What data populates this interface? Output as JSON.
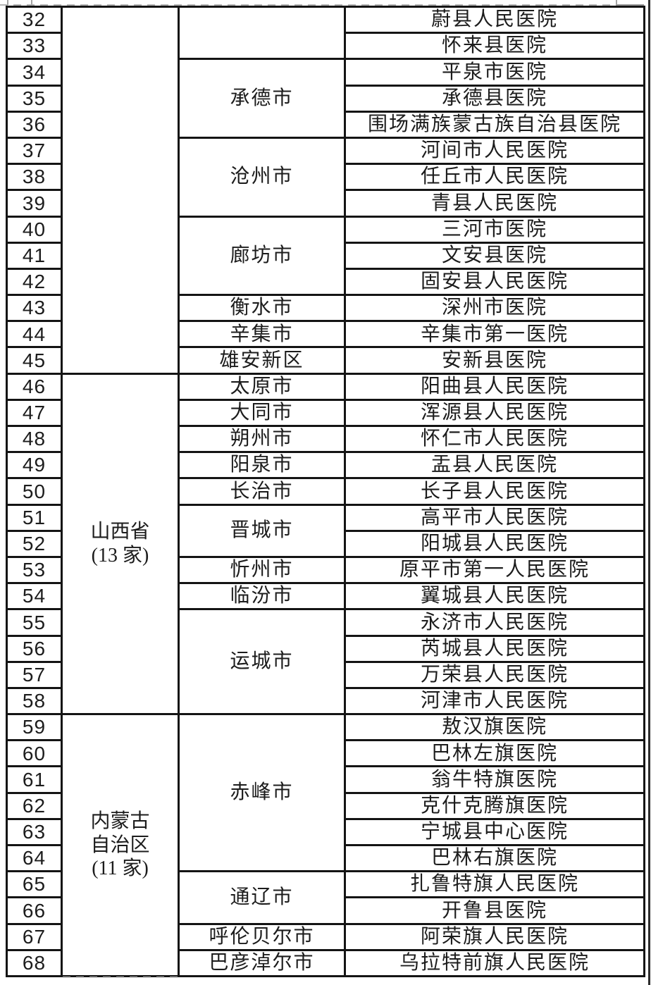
{
  "page": {
    "background_color": "#ffffff",
    "table_border_color": "#141414",
    "text_color": "#1c1c1c",
    "cut_line_color": "#b5b5b5"
  },
  "table": {
    "rows": [
      {
        "num": "32",
        "hospital": "蔚县人民医院"
      },
      {
        "num": "33",
        "hospital": "怀来县医院"
      },
      {
        "num": "34",
        "hospital": "平泉市医院"
      },
      {
        "num": "35",
        "hospital": "承德县医院"
      },
      {
        "num": "36",
        "hospital": "围场满族蒙古族自治县医院"
      },
      {
        "num": "37",
        "hospital": "河间市人民医院"
      },
      {
        "num": "38",
        "hospital": "任丘市人民医院"
      },
      {
        "num": "39",
        "hospital": "青县人民医院"
      },
      {
        "num": "40",
        "hospital": "三河市医院"
      },
      {
        "num": "41",
        "hospital": "文安县医院"
      },
      {
        "num": "42",
        "hospital": "固安县人民医院"
      },
      {
        "num": "43",
        "hospital": "深州市医院"
      },
      {
        "num": "44",
        "hospital": "辛集市第一医院"
      },
      {
        "num": "45",
        "hospital": "安新县医院"
      },
      {
        "num": "46",
        "hospital": "阳曲县人民医院"
      },
      {
        "num": "47",
        "hospital": "浑源县人民医院"
      },
      {
        "num": "48",
        "hospital": "怀仁市人民医院"
      },
      {
        "num": "49",
        "hospital": "盂县人民医院"
      },
      {
        "num": "50",
        "hospital": "长子县人民医院"
      },
      {
        "num": "51",
        "hospital": "高平市人民医院"
      },
      {
        "num": "52",
        "hospital": "阳城县人民医院"
      },
      {
        "num": "53",
        "hospital": "原平市第一人民医院"
      },
      {
        "num": "54",
        "hospital": "翼城县人民医院"
      },
      {
        "num": "55",
        "hospital": "永济市人民医院"
      },
      {
        "num": "56",
        "hospital": "芮城县人民医院"
      },
      {
        "num": "57",
        "hospital": "万荣县人民医院"
      },
      {
        "num": "58",
        "hospital": "河津市人民医院"
      },
      {
        "num": "59",
        "hospital": "敖汉旗医院"
      },
      {
        "num": "60",
        "hospital": "巴林左旗医院"
      },
      {
        "num": "61",
        "hospital": "翁牛特旗医院"
      },
      {
        "num": "62",
        "hospital": "克什克腾旗医院"
      },
      {
        "num": "63",
        "hospital": "宁城县中心医院"
      },
      {
        "num": "64",
        "hospital": "巴林右旗医院"
      },
      {
        "num": "65",
        "hospital": "扎鲁特旗人民医院"
      },
      {
        "num": "66",
        "hospital": "开鲁县医院"
      },
      {
        "num": "67",
        "hospital": "阿荣旗人民医院"
      },
      {
        "num": "68",
        "hospital": "乌拉特前旗人民医院"
      }
    ],
    "province_groups": [
      {
        "label_lines": [],
        "start_num": "32",
        "end_num": "45"
      },
      {
        "label_lines": [
          "山西省",
          "(13 家)"
        ],
        "start_num": "46",
        "end_num": "58"
      },
      {
        "label_lines": [
          "内蒙古",
          "自治区",
          "(11 家)"
        ],
        "start_num": "59",
        "end_num": "68"
      }
    ],
    "city_groups": [
      {
        "label": "",
        "start_num": "32",
        "end_num": "33"
      },
      {
        "label": "承德市",
        "start_num": "34",
        "end_num": "36"
      },
      {
        "label": "沧州市",
        "start_num": "37",
        "end_num": "39"
      },
      {
        "label": "廊坊市",
        "start_num": "40",
        "end_num": "42"
      },
      {
        "label": "衡水市",
        "start_num": "43",
        "end_num": "43"
      },
      {
        "label": "辛集市",
        "start_num": "44",
        "end_num": "44"
      },
      {
        "label": "雄安新区",
        "start_num": "45",
        "end_num": "45"
      },
      {
        "label": "太原市",
        "start_num": "46",
        "end_num": "46"
      },
      {
        "label": "大同市",
        "start_num": "47",
        "end_num": "47"
      },
      {
        "label": "朔州市",
        "start_num": "48",
        "end_num": "48"
      },
      {
        "label": "阳泉市",
        "start_num": "49",
        "end_num": "49"
      },
      {
        "label": "长治市",
        "start_num": "50",
        "end_num": "50"
      },
      {
        "label": "晋城市",
        "start_num": "51",
        "end_num": "52"
      },
      {
        "label": "忻州市",
        "start_num": "53",
        "end_num": "53"
      },
      {
        "label": "临汾市",
        "start_num": "54",
        "end_num": "54"
      },
      {
        "label": "运城市",
        "start_num": "55",
        "end_num": "58"
      },
      {
        "label": "赤峰市",
        "start_num": "59",
        "end_num": "64"
      },
      {
        "label": "通辽市",
        "start_num": "65",
        "end_num": "66"
      },
      {
        "label": "呼伦贝尔市",
        "start_num": "67",
        "end_num": "67"
      },
      {
        "label": "巴彦淖尔市",
        "start_num": "68",
        "end_num": "68"
      }
    ]
  }
}
